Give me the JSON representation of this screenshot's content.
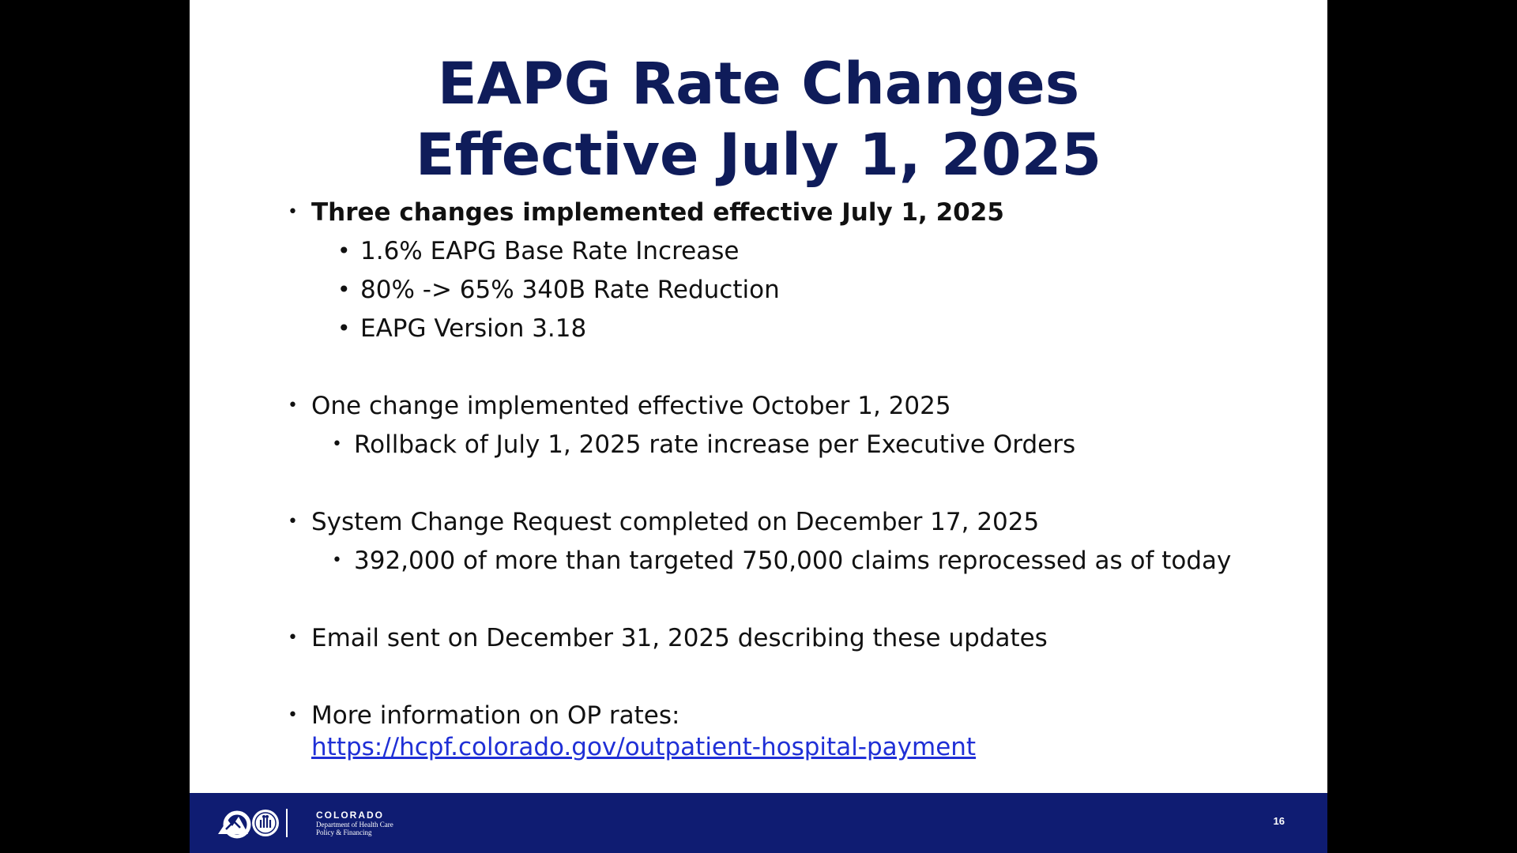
{
  "title": {
    "line1": "EAPG Rate Changes",
    "line2": "Effective July 1, 2025"
  },
  "bullets": {
    "b1": {
      "text": "Three changes implemented effective July 1, 2025",
      "sub1": "1.6% EAPG Base Rate Increase",
      "sub2": "80% -> 65% 340B Rate Reduction",
      "sub3": "EAPG Version 3.18"
    },
    "b2": {
      "text": "One change implemented effective October 1, 2025",
      "sub1": "Rollback of July 1, 2025 rate increase per Executive Orders"
    },
    "b3": {
      "text": "System Change Request completed on December 17, 2025",
      "sub1": "392,000 of more than targeted 750,000 claims reprocessed as of today"
    },
    "b4": {
      "text": "Email sent on December 31, 2025 describing these updates"
    },
    "b5": {
      "text": "More information on OP rates:",
      "link": "https://hcpf.colorado.gov/outpatient-hospital-payment"
    }
  },
  "footer": {
    "logo_state": "COLORADO",
    "logo_dept_line1": "Department of Health Care",
    "logo_dept_line2": "Policy & Financing",
    "page_number": "16"
  },
  "colors": {
    "title": "#0f1c5a",
    "footer_bg": "#0f1c72",
    "link": "#1f2fd6"
  }
}
